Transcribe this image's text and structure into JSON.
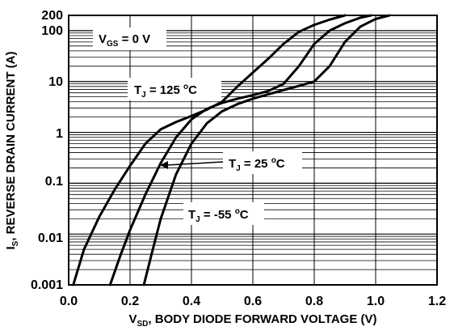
{
  "chart_data": {
    "type": "line",
    "title": "",
    "xlabel": {
      "prefix": "V",
      "subscript": "SD",
      "rest": ", BODY DIODE FORWARD VOLTAGE (V)"
    },
    "ylabel": {
      "prefix": "I",
      "subscript": "S",
      "rest": ", REVERSE DRAIN CURRENT (A)"
    },
    "xlim": [
      0.0,
      1.2
    ],
    "ylim": [
      0.001,
      200
    ],
    "y_scale": "log",
    "grid": true,
    "x_ticks": [
      "0.0",
      "0.2",
      "0.4",
      "0.6",
      "0.8",
      "1.0",
      "1.2"
    ],
    "y_ticks": [
      "0.001",
      "0.01",
      "0.1",
      "1",
      "10",
      "100",
      "200"
    ],
    "annotations": [
      {
        "prefix": "V",
        "subscript": "GS",
        "rest": " = 0 V"
      },
      {
        "prefix": "T",
        "subscript": "J",
        "rest": " = 125 ",
        "sup": "o",
        "unit": "C"
      },
      {
        "prefix": "T",
        "subscript": "J",
        "rest": " = 25 ",
        "sup": "o",
        "unit": "C"
      },
      {
        "prefix": "T",
        "subscript": "J",
        "rest": " = -55 ",
        "sup": "o",
        "unit": "C"
      }
    ],
    "series": [
      {
        "x": [
          0.015,
          0.05,
          0.1,
          0.15,
          0.2,
          0.25,
          0.3,
          0.35,
          0.4,
          0.45,
          0.5,
          0.55,
          0.6,
          0.65,
          0.7,
          0.75,
          0.8,
          0.85,
          0.9
        ],
        "y": [
          0.001,
          0.005,
          0.022,
          0.075,
          0.22,
          0.6,
          1.15,
          1.6,
          2.1,
          2.8,
          4.0,
          8.0,
          15,
          28,
          55,
          95,
          130,
          165,
          200
        ]
      },
      {
        "x": [
          0.135,
          0.17,
          0.2,
          0.25,
          0.3,
          0.35,
          0.4,
          0.45,
          0.5,
          0.55,
          0.6,
          0.65,
          0.7,
          0.75,
          0.8,
          0.85,
          0.9,
          0.95,
          0.985
        ],
        "y": [
          0.001,
          0.004,
          0.012,
          0.06,
          0.25,
          0.8,
          1.8,
          2.9,
          3.8,
          4.6,
          5.4,
          6.5,
          9.0,
          20,
          55,
          100,
          140,
          180,
          200
        ]
      },
      {
        "x": [
          0.245,
          0.27,
          0.3,
          0.35,
          0.4,
          0.45,
          0.5,
          0.55,
          0.6,
          0.65,
          0.7,
          0.75,
          0.8,
          0.85,
          0.9,
          0.95,
          1.0,
          1.045
        ],
        "y": [
          0.001,
          0.004,
          0.02,
          0.15,
          0.6,
          1.5,
          2.6,
          3.6,
          4.6,
          5.6,
          6.8,
          8.2,
          10,
          20,
          60,
          120,
          170,
          200
        ]
      }
    ]
  }
}
